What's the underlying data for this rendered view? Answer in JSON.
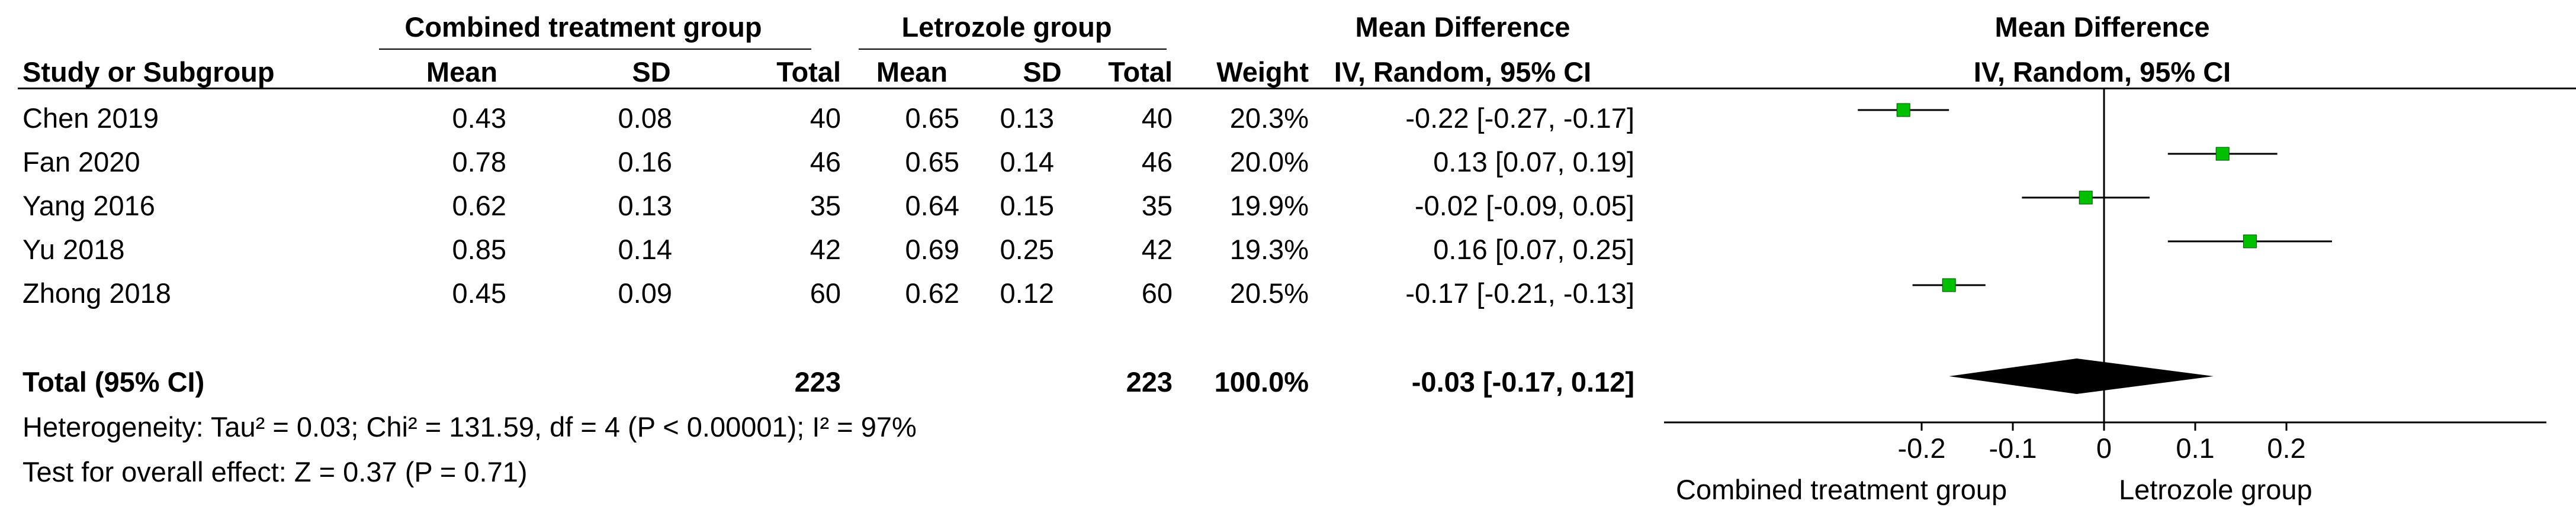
{
  "table": {
    "group_headers": {
      "experimental": "Combined treatment group",
      "control": "Letrozole group",
      "effect": "Mean Difference"
    },
    "columns": {
      "study": "Study or Subgroup",
      "e_mean": "Mean",
      "e_sd": "SD",
      "e_total": "Total",
      "c_mean": "Mean",
      "c_sd": "SD",
      "c_total": "Total",
      "weight": "Weight",
      "effect": "IV, Random, 95% CI"
    },
    "rows": [
      {
        "study": "Chen 2019",
        "e_mean": "0.43",
        "e_sd": "0.08",
        "e_total": "40",
        "c_mean": "0.65",
        "c_sd": "0.13",
        "c_total": "40",
        "weight": "20.3%",
        "effect": "-0.22 [-0.27, -0.17]"
      },
      {
        "study": "Fan 2020",
        "e_mean": "0.78",
        "e_sd": "0.16",
        "e_total": "46",
        "c_mean": "0.65",
        "c_sd": "0.14",
        "c_total": "46",
        "weight": "20.0%",
        "effect": "0.13 [0.07, 0.19]"
      },
      {
        "study": "Yang 2016",
        "e_mean": "0.62",
        "e_sd": "0.13",
        "e_total": "35",
        "c_mean": "0.64",
        "c_sd": "0.15",
        "c_total": "35",
        "weight": "19.9%",
        "effect": "-0.02 [-0.09, 0.05]"
      },
      {
        "study": "Yu 2018",
        "e_mean": "0.85",
        "e_sd": "0.14",
        "e_total": "42",
        "c_mean": "0.69",
        "c_sd": "0.25",
        "c_total": "42",
        "weight": "19.3%",
        "effect": "0.16 [0.07, 0.25]"
      },
      {
        "study": "Zhong 2018",
        "e_mean": "0.45",
        "e_sd": "0.09",
        "e_total": "60",
        "c_mean": "0.62",
        "c_sd": "0.12",
        "c_total": "60",
        "weight": "20.5%",
        "effect": "-0.17 [-0.21, -0.13]"
      }
    ],
    "total": {
      "label": "Total (95% CI)",
      "e_total": "223",
      "c_total": "223",
      "weight": "100.0%",
      "effect": "-0.03 [-0.17, 0.12]"
    },
    "heterogeneity": "Heterogeneity: Tau² = 0.03; Chi² = 131.59, df = 4 (P < 0.00001); I² = 97%",
    "overall_effect": "Test for overall effect: Z = 0.37 (P = 0.71)"
  },
  "chart_data": {
    "type": "forest",
    "title": "Mean Difference",
    "subtitle": "IV, Random, 95% CI",
    "series": [
      {
        "study": "Chen 2019",
        "md": -0.22,
        "lo": -0.27,
        "hi": -0.17
      },
      {
        "study": "Fan 2020",
        "md": 0.13,
        "lo": 0.07,
        "hi": 0.19
      },
      {
        "study": "Yang 2016",
        "md": -0.02,
        "lo": -0.09,
        "hi": 0.05
      },
      {
        "study": "Yu 2018",
        "md": 0.16,
        "lo": 0.07,
        "hi": 0.25
      },
      {
        "study": "Zhong 2018",
        "md": -0.17,
        "lo": -0.21,
        "hi": -0.13
      }
    ],
    "pooled": {
      "md": -0.03,
      "lo": -0.17,
      "hi": 0.12
    },
    "ticks": [
      -0.2,
      -0.1,
      0,
      0.1,
      0.2
    ],
    "tick_labels": [
      "-0.2",
      "-0.1",
      "0",
      "0.1",
      "0.2"
    ],
    "xlim": [
      -0.5,
      0.5
    ],
    "favours_left": "Combined treatment group",
    "favours_right": "Letrozole group",
    "marker_color": "#00c000"
  }
}
